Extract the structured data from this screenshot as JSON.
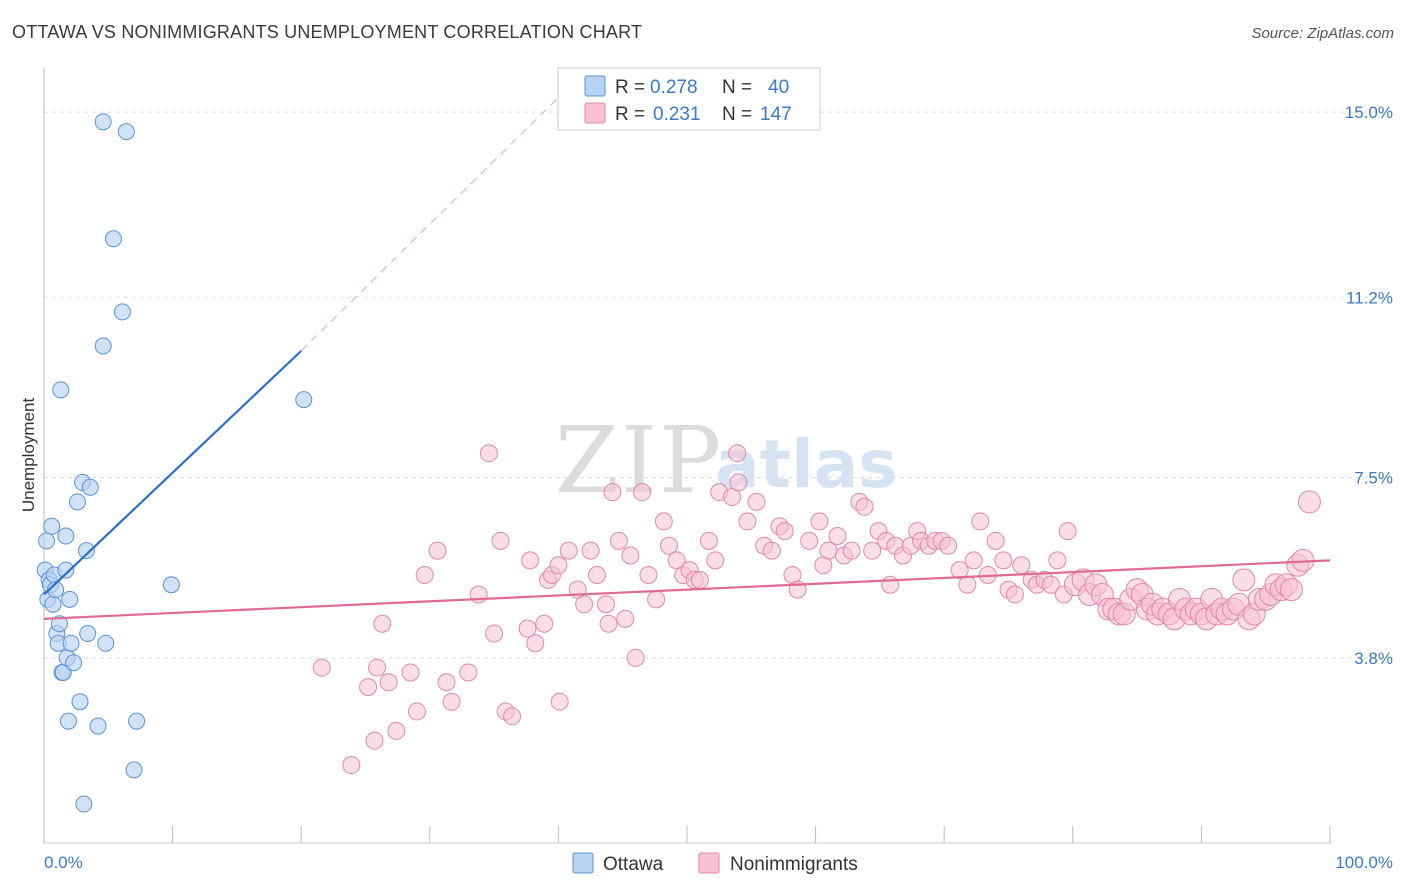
{
  "title": "OTTAWA VS NONIMMIGRANTS UNEMPLOYMENT CORRELATION CHART",
  "source": "Source: ZipAtlas.com",
  "watermark": {
    "zip": "ZIP",
    "atlas": "atlas"
  },
  "colors": {
    "ottawa_fill": "#b8d3f3",
    "ottawa_stroke": "#5b93d6",
    "ottawa_line": "#2a6fcf",
    "nonimm_fill": "#f7c1d1",
    "nonimm_stroke": "#e08aa8",
    "nonimm_line": "#e06a96",
    "tick_text": "#3b78c9",
    "grid": "#dddddd"
  },
  "legend_box": {
    "rows": [
      {
        "r_label": "R =",
        "r_value": "0.278",
        "n_label": "N =",
        "n_value": "40"
      },
      {
        "r_label": "R =",
        "r_value": "0.231",
        "n_label": "N =",
        "n_value": "147"
      }
    ]
  },
  "bottom_legend": [
    "Ottawa",
    "Nonimmigrants"
  ],
  "chart_data": {
    "type": "scatter",
    "title": "OTTAWA VS NONIMMIGRANTS UNEMPLOYMENT CORRELATION CHART",
    "xlabel": "",
    "ylabel": "Unemployment",
    "xlim": [
      0,
      100
    ],
    "ylim": [
      0,
      15.7
    ],
    "x_tick_labels": [
      "0.0%",
      "100.0%"
    ],
    "y_ticks": [
      3.8,
      7.5,
      11.2,
      15.0
    ],
    "y_tick_labels": [
      "3.8%",
      "7.5%",
      "11.2%",
      "15.0%"
    ],
    "grid": true,
    "legend": "top-center",
    "series": [
      {
        "name": "Ottawa",
        "r": 0.278,
        "n": 40,
        "trend": {
          "x": [
            0,
            20
          ],
          "y": [
            5.1,
            10.1
          ],
          "extended_to": [
            40,
            15.3
          ]
        },
        "points": [
          [
            0.1,
            5.6
          ],
          [
            0.2,
            6.2
          ],
          [
            0.3,
            5.0
          ],
          [
            0.4,
            5.4
          ],
          [
            0.5,
            5.3
          ],
          [
            0.6,
            6.5
          ],
          [
            0.7,
            4.9
          ],
          [
            0.8,
            5.5
          ],
          [
            1.0,
            4.3
          ],
          [
            1.1,
            4.1
          ],
          [
            1.2,
            4.5
          ],
          [
            1.3,
            9.3
          ],
          [
            1.4,
            3.5
          ],
          [
            1.5,
            3.5
          ],
          [
            1.7,
            5.6
          ],
          [
            1.7,
            6.3
          ],
          [
            1.8,
            3.8
          ],
          [
            1.9,
            2.5
          ],
          [
            2.0,
            5.0
          ],
          [
            2.1,
            4.1
          ],
          [
            2.3,
            3.7
          ],
          [
            2.6,
            7.0
          ],
          [
            2.8,
            2.9
          ],
          [
            3.0,
            7.4
          ],
          [
            3.1,
            0.8
          ],
          [
            3.3,
            6.0
          ],
          [
            3.4,
            4.3
          ],
          [
            3.6,
            7.3
          ],
          [
            4.2,
            2.4
          ],
          [
            4.6,
            14.8
          ],
          [
            4.6,
            10.2
          ],
          [
            4.8,
            4.1
          ],
          [
            5.4,
            12.4
          ],
          [
            6.1,
            10.9
          ],
          [
            6.4,
            14.6
          ],
          [
            7.0,
            1.5
          ],
          [
            7.2,
            2.5
          ],
          [
            9.9,
            5.3
          ],
          [
            20.2,
            9.1
          ],
          [
            0.9,
            5.2
          ]
        ]
      },
      {
        "name": "Nonimmigrants",
        "r": 0.231,
        "n": 147,
        "trend": {
          "x": [
            0,
            100
          ],
          "y": [
            4.6,
            5.8
          ]
        },
        "points": [
          [
            21.6,
            3.6
          ],
          [
            23.9,
            1.6
          ],
          [
            25.2,
            3.2
          ],
          [
            25.7,
            2.1
          ],
          [
            25.9,
            3.6
          ],
          [
            26.3,
            4.5
          ],
          [
            26.8,
            3.3
          ],
          [
            27.4,
            2.3
          ],
          [
            28.5,
            3.5
          ],
          [
            29.0,
            2.7
          ],
          [
            29.6,
            5.5
          ],
          [
            30.6,
            6.0
          ],
          [
            31.3,
            3.3
          ],
          [
            31.7,
            2.9
          ],
          [
            33.0,
            3.5
          ],
          [
            33.8,
            5.1
          ],
          [
            34.6,
            8.0
          ],
          [
            35.0,
            4.3
          ],
          [
            35.5,
            6.2
          ],
          [
            35.9,
            2.7
          ],
          [
            36.4,
            2.6
          ],
          [
            37.6,
            4.4
          ],
          [
            37.8,
            5.8
          ],
          [
            38.2,
            4.1
          ],
          [
            38.9,
            4.5
          ],
          [
            39.2,
            5.4
          ],
          [
            39.5,
            5.5
          ],
          [
            40.0,
            5.7
          ],
          [
            40.1,
            2.9
          ],
          [
            40.8,
            6.0
          ],
          [
            41.5,
            5.2
          ],
          [
            42.0,
            4.9
          ],
          [
            42.5,
            6.0
          ],
          [
            43.0,
            5.5
          ],
          [
            43.7,
            4.9
          ],
          [
            43.9,
            4.5
          ],
          [
            44.2,
            7.2
          ],
          [
            44.7,
            6.2
          ],
          [
            45.2,
            4.6
          ],
          [
            45.6,
            5.9
          ],
          [
            46.0,
            3.8
          ],
          [
            46.5,
            7.2
          ],
          [
            47.0,
            5.5
          ],
          [
            47.6,
            5.0
          ],
          [
            48.2,
            6.6
          ],
          [
            48.6,
            6.1
          ],
          [
            49.2,
            5.8
          ],
          [
            49.7,
            5.5
          ],
          [
            50.2,
            5.6
          ],
          [
            50.6,
            5.4
          ],
          [
            51.0,
            5.4
          ],
          [
            51.7,
            6.2
          ],
          [
            52.2,
            5.8
          ],
          [
            52.5,
            7.2
          ],
          [
            53.5,
            7.1
          ],
          [
            53.9,
            8.0
          ],
          [
            54.0,
            7.4
          ],
          [
            54.7,
            6.6
          ],
          [
            55.4,
            7.0
          ],
          [
            56.0,
            6.1
          ],
          [
            56.6,
            6.0
          ],
          [
            57.2,
            6.5
          ],
          [
            57.6,
            6.4
          ],
          [
            58.2,
            5.5
          ],
          [
            58.6,
            5.2
          ],
          [
            59.5,
            6.2
          ],
          [
            60.3,
            6.6
          ],
          [
            60.6,
            5.7
          ],
          [
            61.0,
            6.0
          ],
          [
            61.7,
            6.3
          ],
          [
            62.2,
            5.9
          ],
          [
            62.8,
            6.0
          ],
          [
            63.4,
            7.0
          ],
          [
            63.8,
            6.9
          ],
          [
            64.4,
            6.0
          ],
          [
            64.9,
            6.4
          ],
          [
            65.5,
            6.2
          ],
          [
            65.8,
            5.3
          ],
          [
            66.2,
            6.1
          ],
          [
            66.8,
            5.9
          ],
          [
            67.4,
            6.1
          ],
          [
            67.9,
            6.4
          ],
          [
            68.2,
            6.2
          ],
          [
            68.8,
            6.1
          ],
          [
            69.3,
            6.2
          ],
          [
            69.8,
            6.2
          ],
          [
            70.3,
            6.1
          ],
          [
            71.2,
            5.6
          ],
          [
            71.8,
            5.3
          ],
          [
            72.3,
            5.8
          ],
          [
            72.8,
            6.6
          ],
          [
            73.4,
            5.5
          ],
          [
            74.0,
            6.2
          ],
          [
            74.6,
            5.8
          ],
          [
            75.0,
            5.2
          ],
          [
            75.5,
            5.1
          ],
          [
            76.0,
            5.7
          ],
          [
            76.8,
            5.4
          ],
          [
            77.2,
            5.3
          ],
          [
            77.8,
            5.4
          ],
          [
            78.3,
            5.3
          ],
          [
            78.8,
            5.8
          ],
          [
            79.3,
            5.1
          ],
          [
            79.6,
            6.4
          ],
          [
            80.2,
            5.3
          ],
          [
            80.8,
            5.4
          ],
          [
            81.3,
            5.1
          ],
          [
            81.8,
            5.3
          ],
          [
            82.3,
            5.1
          ],
          [
            82.8,
            4.8
          ],
          [
            83.2,
            4.8
          ],
          [
            83.6,
            4.7
          ],
          [
            84.0,
            4.7
          ],
          [
            84.5,
            5.0
          ],
          [
            85.0,
            5.2
          ],
          [
            85.4,
            5.1
          ],
          [
            85.8,
            4.8
          ],
          [
            86.2,
            4.9
          ],
          [
            86.6,
            4.7
          ],
          [
            87.0,
            4.8
          ],
          [
            87.5,
            4.7
          ],
          [
            87.9,
            4.6
          ],
          [
            88.3,
            5.0
          ],
          [
            88.8,
            4.8
          ],
          [
            89.2,
            4.7
          ],
          [
            89.6,
            4.8
          ],
          [
            90.0,
            4.7
          ],
          [
            90.4,
            4.6
          ],
          [
            90.8,
            5.0
          ],
          [
            91.2,
            4.7
          ],
          [
            91.6,
            4.8
          ],
          [
            92.0,
            4.7
          ],
          [
            92.5,
            4.8
          ],
          [
            92.9,
            4.9
          ],
          [
            93.3,
            5.4
          ],
          [
            93.7,
            4.6
          ],
          [
            94.1,
            4.7
          ],
          [
            94.5,
            5.0
          ],
          [
            95.0,
            5.0
          ],
          [
            95.4,
            5.1
          ],
          [
            95.8,
            5.3
          ],
          [
            96.2,
            5.2
          ],
          [
            96.6,
            5.3
          ],
          [
            97.0,
            5.2
          ],
          [
            97.5,
            5.7
          ],
          [
            97.9,
            5.8
          ],
          [
            98.4,
            7.0
          ]
        ]
      }
    ]
  }
}
